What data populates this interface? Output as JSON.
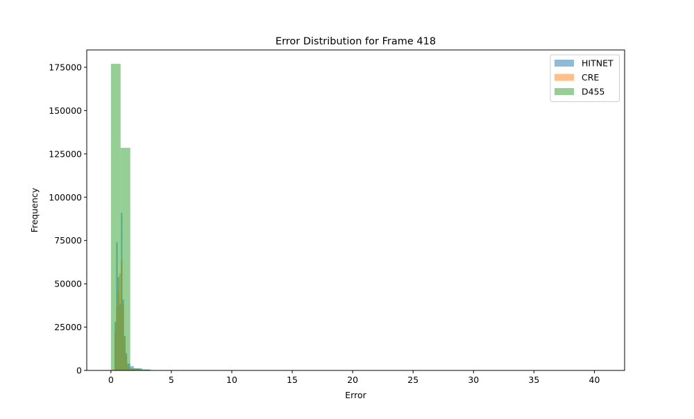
{
  "chart_data": {
    "type": "histogram",
    "title": "Error Distribution for Frame 418",
    "xlabel": "Error",
    "ylabel": "Frequency",
    "xlim": [
      -2.0,
      42.5
    ],
    "ylim": [
      0,
      185000
    ],
    "x_ticks": [
      0,
      5,
      10,
      15,
      20,
      25,
      30,
      35,
      40
    ],
    "y_ticks": [
      0,
      25000,
      50000,
      75000,
      100000,
      125000,
      150000,
      175000
    ],
    "legend_position": "top-right",
    "series": [
      {
        "name": "HITNET",
        "color": "#1f77b4",
        "opacity": 0.5,
        "bins": [
          {
            "x0": 0.3,
            "x1": 0.43,
            "value": 28000
          },
          {
            "x0": 0.43,
            "x1": 0.56,
            "value": 74000
          },
          {
            "x0": 0.56,
            "x1": 0.69,
            "value": 54000
          },
          {
            "x0": 0.69,
            "x1": 0.82,
            "value": 38000
          },
          {
            "x0": 0.82,
            "x1": 0.95,
            "value": 91000
          },
          {
            "x0": 0.95,
            "x1": 1.08,
            "value": 41000
          },
          {
            "x0": 1.08,
            "x1": 1.21,
            "value": 20000
          },
          {
            "x0": 1.21,
            "x1": 1.34,
            "value": 10000
          },
          {
            "x0": 1.34,
            "x1": 1.6,
            "value": 4000
          },
          {
            "x0": 1.6,
            "x1": 1.9,
            "value": 2500
          },
          {
            "x0": 1.9,
            "x1": 2.6,
            "value": 1200
          },
          {
            "x0": 2.6,
            "x1": 3.3,
            "value": 500
          }
        ]
      },
      {
        "name": "CRE",
        "color": "#ff7f0e",
        "opacity": 0.5,
        "bins": [
          {
            "x0": 0.3,
            "x1": 0.43,
            "value": 22000
          },
          {
            "x0": 0.43,
            "x1": 0.56,
            "value": 37000
          },
          {
            "x0": 0.56,
            "x1": 0.69,
            "value": 45000
          },
          {
            "x0": 0.69,
            "x1": 0.82,
            "value": 56000
          },
          {
            "x0": 0.82,
            "x1": 0.95,
            "value": 64000
          },
          {
            "x0": 0.95,
            "x1": 1.08,
            "value": 38000
          },
          {
            "x0": 1.08,
            "x1": 1.21,
            "value": 19000
          },
          {
            "x0": 1.21,
            "x1": 1.34,
            "value": 8000
          },
          {
            "x0": 1.34,
            "x1": 1.6,
            "value": 2000
          },
          {
            "x0": 1.6,
            "x1": 2.2,
            "value": 600
          }
        ]
      },
      {
        "name": "D455",
        "color": "#2ca02c",
        "opacity": 0.5,
        "bins": [
          {
            "x0": 0.0,
            "x1": 0.8,
            "value": 177000
          },
          {
            "x0": 0.8,
            "x1": 1.6,
            "value": 128500
          },
          {
            "x0": 1.6,
            "x1": 2.4,
            "value": 1200
          },
          {
            "x0": 2.4,
            "x1": 3.2,
            "value": 600
          },
          {
            "x0": 3.2,
            "x1": 4.0,
            "value": 200
          }
        ]
      }
    ]
  }
}
